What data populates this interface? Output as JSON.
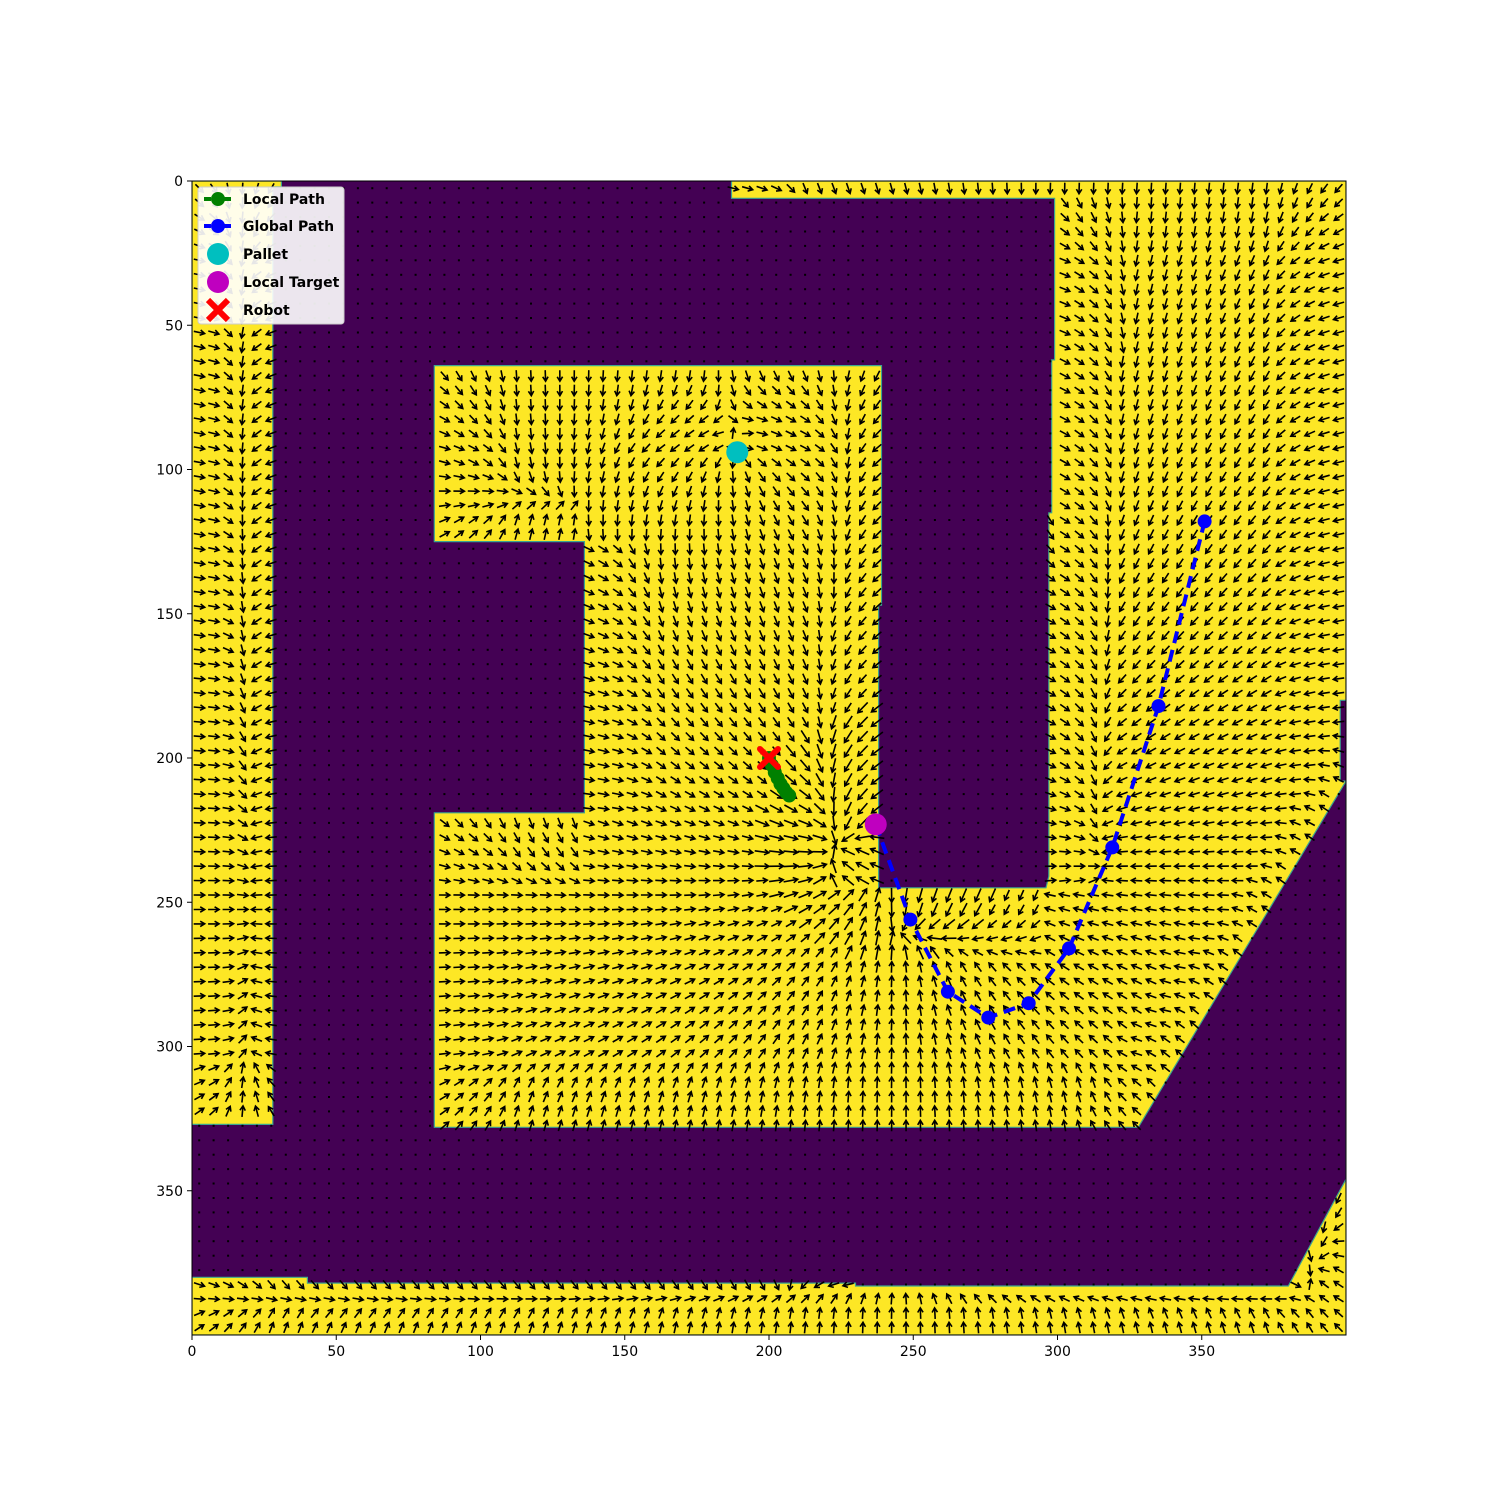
{
  "chart_data": {
    "type": "heatmap",
    "title": "",
    "xlabel": "",
    "ylabel": "",
    "xlim": [
      0,
      400
    ],
    "ylim": [
      400,
      0
    ],
    "y_axis_inverted": true,
    "xticks": [
      0,
      50,
      100,
      150,
      200,
      250,
      300,
      350
    ],
    "yticks": [
      0,
      50,
      100,
      150,
      200,
      250,
      300,
      350
    ],
    "colors": {
      "obstacle": "#440154",
      "free": "#fde725",
      "arrow": "#000000",
      "local_path": "#008000",
      "global_path": "#0000ff",
      "pallet": "#00bfbf",
      "local_target": "#bf00bf",
      "robot": "#ff0000"
    },
    "free_regions": [
      {
        "polygon": [
          [
            0,
            0
          ],
          [
            31,
            0
          ],
          [
            31,
            2
          ],
          [
            28,
            2
          ],
          [
            28,
            327
          ],
          [
            0,
            327
          ]
        ]
      },
      {
        "polygon": [
          [
            187,
            0
          ],
          [
            400,
            0
          ],
          [
            400,
            180
          ],
          [
            398,
            180
          ],
          [
            398,
            208
          ],
          [
            400,
            208
          ],
          [
            400,
            400
          ],
          [
            0,
            400
          ],
          [
            0,
            380
          ],
          [
            40,
            380
          ],
          [
            40,
            382
          ],
          [
            230,
            382
          ],
          [
            230,
            383
          ],
          [
            380,
            383
          ],
          [
            400,
            346
          ],
          [
            400,
            208
          ],
          [
            328,
            328
          ],
          [
            84,
            328
          ],
          [
            84,
            219
          ],
          [
            136,
            219
          ],
          [
            136,
            125
          ],
          [
            84,
            125
          ],
          [
            84,
            64
          ],
          [
            239,
            64
          ],
          [
            239,
            147
          ],
          [
            238,
            147
          ],
          [
            238,
            245
          ],
          [
            296,
            245
          ],
          [
            297,
            241
          ],
          [
            297,
            115
          ],
          [
            298,
            115
          ],
          [
            298,
            62
          ],
          [
            299,
            62
          ],
          [
            299,
            6
          ],
          [
            187,
            6
          ]
        ]
      }
    ],
    "series": [
      {
        "name": "Local Path",
        "style": "dashed line with circle markers",
        "x": [
          200,
          201,
          202,
          203,
          204,
          205,
          206,
          207
        ],
        "y": [
          200,
          202.5,
          205,
          207,
          209,
          210.5,
          212,
          213
        ]
      },
      {
        "name": "Global Path",
        "style": "dashed line with circle markers",
        "x": [
          237,
          249,
          262,
          276,
          290,
          304,
          319,
          335,
          351
        ],
        "y": [
          223,
          256,
          281,
          290,
          285,
          266,
          231,
          182,
          118
        ]
      }
    ],
    "markers": [
      {
        "name": "Pallet",
        "x": 189,
        "y": 94,
        "shape": "circle"
      },
      {
        "name": "Local Target",
        "x": 237,
        "y": 223,
        "shape": "circle"
      },
      {
        "name": "Robot",
        "x": 200,
        "y": 200,
        "shape": "x"
      }
    ],
    "vector_field": {
      "grid_spacing": 5,
      "attractor_sink": [
        241,
        226
      ],
      "source": [
        189,
        94
      ]
    },
    "legend": {
      "position": "upper-left",
      "entries": [
        "Local Path",
        "Global Path",
        "Pallet",
        "Local Target",
        "Robot"
      ]
    },
    "grid": false
  }
}
